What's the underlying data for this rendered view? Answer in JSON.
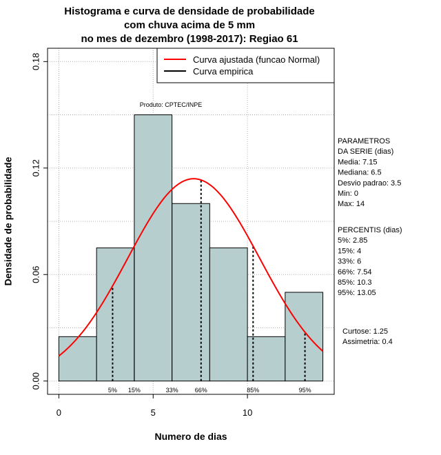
{
  "chart_data": {
    "type": "histogram",
    "title_lines": [
      "Histograma e curva de densidade de probabilidade",
      "com chuva acima de 5 mm",
      "no mes de dezembro (1998-2017): Regiao 61"
    ],
    "xlabel": "Numero de dias",
    "ylabel": "Densidade de probabilidade",
    "xlim": [
      -0.6,
      14.6
    ],
    "ylim": [
      -0.0075,
      0.1875
    ],
    "x_ticks": [
      0,
      5,
      10
    ],
    "y_ticks": [
      0.0,
      0.06,
      0.12,
      0.18
    ],
    "y_tick_labels": [
      "0.00",
      "0.06",
      "0.12",
      "0.18"
    ],
    "grid_lines_y": [
      0.03,
      0.09,
      0.15
    ],
    "grid_lines_x": [
      0,
      5,
      10
    ],
    "bins": [
      {
        "x0": 0,
        "x1": 2,
        "density": 0.025
      },
      {
        "x0": 2,
        "x1": 4,
        "density": 0.075
      },
      {
        "x0": 4,
        "x1": 6,
        "density": 0.15
      },
      {
        "x0": 6,
        "x1": 8,
        "density": 0.1
      },
      {
        "x0": 8,
        "x1": 10,
        "density": 0.075
      },
      {
        "x0": 10,
        "x1": 12,
        "density": 0.025
      },
      {
        "x0": 12,
        "x1": 14,
        "density": 0.05
      }
    ],
    "bar_color": "#b7cece",
    "normal_curve": {
      "mean": 7.15,
      "sd": 3.5,
      "x_from": 0,
      "x_to": 14,
      "color": "#ff0000"
    },
    "percentile_lines": [
      {
        "label": "5%",
        "x": 2.85,
        "style": "dotted"
      },
      {
        "label": "15%",
        "x": 4,
        "style": "solid"
      },
      {
        "label": "33%",
        "x": 6,
        "style": "solid"
      },
      {
        "label": "66%",
        "x": 7.54,
        "style": "dotted"
      },
      {
        "label": "85%",
        "x": 10.3,
        "style": "dotted"
      },
      {
        "label": "95%",
        "x": 13.05,
        "style": "dotted"
      }
    ],
    "legend": [
      {
        "label": "Curva ajustada (funcao Normal)",
        "color": "#ff0000"
      },
      {
        "label": "Curva empirica",
        "color": "#000000"
      }
    ],
    "credit": "Produto: CPTEC/INPE",
    "side_panel": {
      "parametros": [
        "PARAMETROS",
        "DA SERIE (dias)",
        "  Media: 7.15",
        "  Mediana: 6.5",
        "  Desvio padrao: 3.5",
        "  Min: 0",
        "  Max: 14"
      ],
      "percentis": [
        "PERCENTIS (dias)",
        "  5%: 2.85",
        "  15%: 4",
        "  33%: 6",
        "  66%: 7.54",
        "  85%: 10.3",
        "  95%: 13.05"
      ],
      "stats": [
        "  Curtose: 1.25",
        "Assimetria: 0.4"
      ]
    }
  }
}
